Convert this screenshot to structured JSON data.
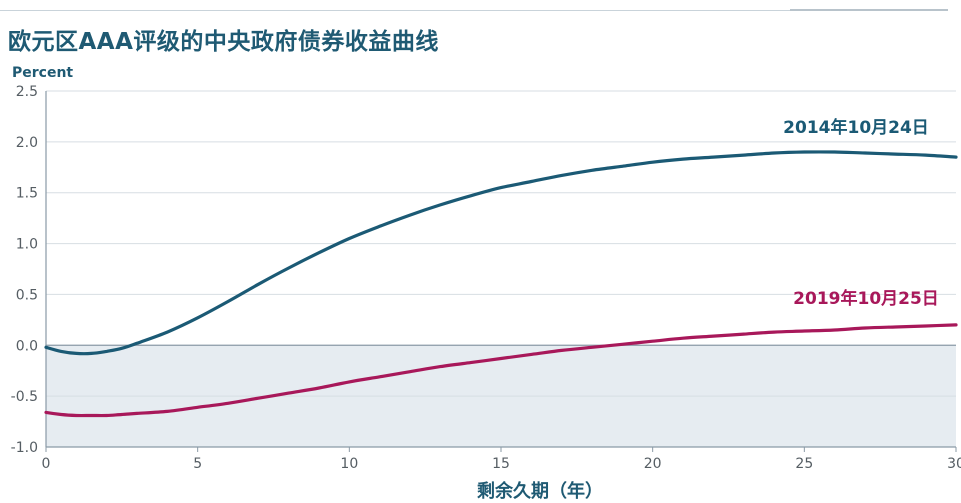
{
  "title": "欧元区AAA评级的中央政府债券收益曲线",
  "chart_data": {
    "type": "line",
    "title": "欧元区AAA评级的中央政府债券收益曲线",
    "ylabel": "Percent",
    "xlabel": "剩余久期（年）",
    "xlim": [
      0,
      30
    ],
    "ylim": [
      -1.0,
      2.5
    ],
    "xticks": [
      "0",
      "5",
      "10",
      "15",
      "20",
      "25",
      "30"
    ],
    "yticks": [
      "2.5",
      "2.0",
      "1.5",
      "1.0",
      "0.5",
      "0.0",
      "-0.5",
      "-1.0"
    ],
    "grid": true,
    "negative_region_shaded": true,
    "series": [
      {
        "name": "2014年10月24日",
        "color": "#1b5a75",
        "x": [
          0,
          0.5,
          1,
          1.5,
          2,
          2.5,
          3,
          4,
          5,
          6,
          7,
          8,
          9,
          10,
          11,
          12,
          13,
          14,
          15,
          16,
          17,
          18,
          19,
          20,
          21,
          22,
          23,
          24,
          25,
          26,
          27,
          28,
          29,
          30
        ],
        "y": [
          -0.02,
          -0.06,
          -0.08,
          -0.08,
          -0.06,
          -0.03,
          0.02,
          0.13,
          0.27,
          0.43,
          0.6,
          0.76,
          0.91,
          1.05,
          1.17,
          1.28,
          1.38,
          1.47,
          1.55,
          1.61,
          1.67,
          1.72,
          1.76,
          1.8,
          1.83,
          1.85,
          1.87,
          1.89,
          1.9,
          1.9,
          1.89,
          1.88,
          1.87,
          1.85
        ]
      },
      {
        "name": "2019年10月25日",
        "color": "#a8185a",
        "x": [
          0,
          0.5,
          1,
          1.5,
          2,
          2.5,
          3,
          4,
          5,
          6,
          7,
          8,
          9,
          10,
          11,
          12,
          13,
          14,
          15,
          16,
          17,
          18,
          19,
          20,
          21,
          22,
          23,
          24,
          25,
          26,
          27,
          28,
          29,
          30
        ],
        "y": [
          -0.66,
          -0.68,
          -0.69,
          -0.69,
          -0.69,
          -0.68,
          -0.67,
          -0.65,
          -0.61,
          -0.57,
          -0.52,
          -0.47,
          -0.42,
          -0.36,
          -0.31,
          -0.26,
          -0.21,
          -0.17,
          -0.13,
          -0.09,
          -0.05,
          -0.02,
          0.01,
          0.04,
          0.07,
          0.09,
          0.11,
          0.13,
          0.14,
          0.15,
          0.17,
          0.18,
          0.19,
          0.2
        ]
      }
    ]
  }
}
